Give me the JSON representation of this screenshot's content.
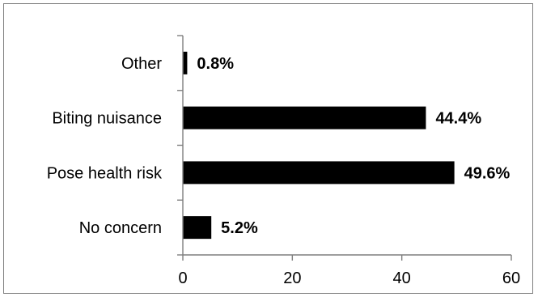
{
  "chart_data": {
    "type": "bar",
    "orientation": "horizontal",
    "categories": [
      "Other",
      "Biting nuisance",
      "Pose health risk",
      "No concern"
    ],
    "values": [
      0.8,
      44.4,
      49.6,
      5.2
    ],
    "data_labels": [
      "0.8%",
      "44.4%",
      "49.6%",
      "5.2%"
    ],
    "title": "",
    "xlabel": "",
    "ylabel": "",
    "xlim": [
      0,
      60
    ],
    "x_ticks": [
      0,
      20,
      40,
      60
    ],
    "x_tick_labels": [
      "0",
      "20",
      "40",
      "60"
    ],
    "grid": false,
    "legend": "none",
    "bar_color": "#000000",
    "axis_color": "#7f7f7f"
  }
}
